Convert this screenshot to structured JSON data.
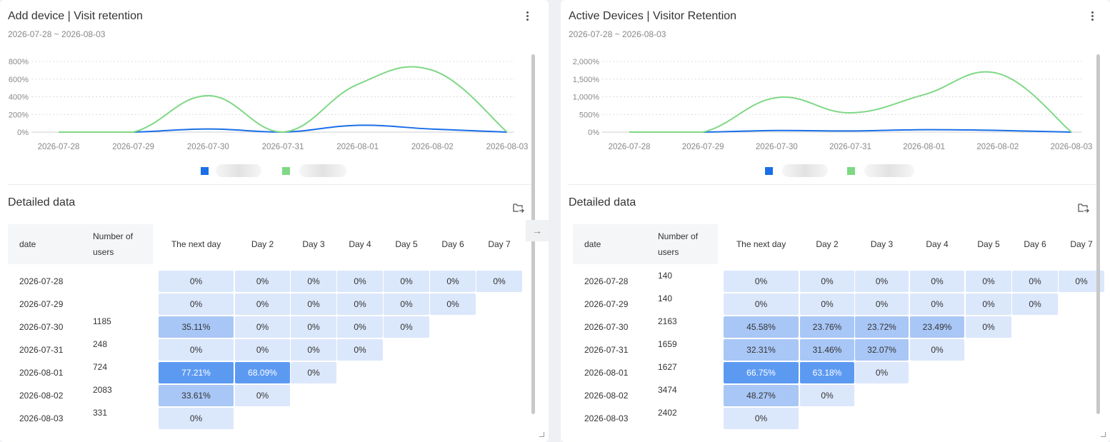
{
  "colors": {
    "blue_line": "#1a6fe8",
    "green_line": "#7fd885",
    "header_bg": "#f5f6f8",
    "cell_low": "#dbe7fb",
    "cell_mid": "#a9c7f6",
    "cell_high": "#5c9af2"
  },
  "panels": [
    {
      "title": "Add device | Visit retention",
      "date_range": "2026-07-28 ~ 2026-08-03",
      "detail_title": "Detailed data",
      "chart": {
        "y_ticks": [
          "800%",
          "600%",
          "400%",
          "200%",
          "0%"
        ],
        "y_max": 800,
        "x_labels": [
          "2026-07-28",
          "2026-07-29",
          "2026-07-30",
          "2026-07-31",
          "2026-08-01",
          "2026-08-02",
          "2026-08-03"
        ],
        "series": [
          {
            "color": "#1a6fe8",
            "values": [
              0,
              0,
              35,
              0,
              77,
              34,
              0
            ]
          },
          {
            "color": "#7fd885",
            "values": [
              0,
              0,
              412,
              0,
              540,
              700,
              0
            ]
          }
        ]
      },
      "columns": {
        "date": "date",
        "users": "Number of users",
        "days": [
          "The next day",
          "Day 2",
          "Day 3",
          "Day 4",
          "Day 5",
          "Day 6",
          "Day 7"
        ]
      },
      "rows": [
        {
          "date": "2026-07-28",
          "users": "",
          "cells": [
            "0%",
            "0%",
            "0%",
            "0%",
            "0%",
            "0%",
            "0%"
          ]
        },
        {
          "date": "2026-07-29",
          "users": "",
          "cells": [
            "0%",
            "0%",
            "0%",
            "0%",
            "0%",
            "0%"
          ]
        },
        {
          "date": "2026-07-30",
          "users": "1185",
          "cells": [
            "35.11%",
            "0%",
            "0%",
            "0%",
            "0%"
          ]
        },
        {
          "date": "2026-07-31",
          "users": "248",
          "cells": [
            "0%",
            "0%",
            "0%",
            "0%"
          ]
        },
        {
          "date": "2026-08-01",
          "users": "724",
          "cells": [
            "77.21%",
            "68.09%",
            "0%"
          ]
        },
        {
          "date": "2026-08-02",
          "users": "2083",
          "cells": [
            "33.61%",
            "0%"
          ]
        },
        {
          "date": "2026-08-03",
          "users": "331",
          "cells": [
            "0%"
          ]
        }
      ]
    },
    {
      "title": "Active Devices | Visitor Retention",
      "date_range": "2026-07-28 ~ 2026-08-03",
      "detail_title": "Detailed data",
      "chart": {
        "y_ticks": [
          "2,000%",
          "1,500%",
          "1,000%",
          "500%",
          "0%"
        ],
        "y_max": 2000,
        "x_labels": [
          "2026-07-28",
          "2026-07-29",
          "2026-07-30",
          "2026-07-31",
          "2026-08-01",
          "2026-08-02",
          "2026-08-03"
        ],
        "series": [
          {
            "color": "#1a6fe8",
            "values": [
              0,
              0,
              45,
              32,
              67,
              48,
              0
            ]
          },
          {
            "color": "#7fd885",
            "values": [
              0,
              0,
              975,
              545,
              1060,
              1660,
              0
            ]
          }
        ]
      },
      "columns": {
        "date": "date",
        "users": "Number of users",
        "days": [
          "The next day",
          "Day 2",
          "Day 3",
          "Day 4",
          "Day 5",
          "Day 6",
          "Day 7"
        ]
      },
      "rows": [
        {
          "date": "2026-07-28",
          "users": "140",
          "cells": [
            "0%",
            "0%",
            "0%",
            "0%",
            "0%",
            "0%",
            "0%"
          ]
        },
        {
          "date": "2026-07-29",
          "users": "140",
          "cells": [
            "0%",
            "0%",
            "0%",
            "0%",
            "0%",
            "0%"
          ]
        },
        {
          "date": "2026-07-30",
          "users": "2163",
          "cells": [
            "45.58%",
            "23.76%",
            "23.72%",
            "23.49%",
            "0%"
          ]
        },
        {
          "date": "2026-07-31",
          "users": "1659",
          "cells": [
            "32.31%",
            "31.46%",
            "32.07%",
            "0%"
          ]
        },
        {
          "date": "2026-08-01",
          "users": "1627",
          "cells": [
            "66.75%",
            "63.18%",
            "0%"
          ]
        },
        {
          "date": "2026-08-02",
          "users": "3474",
          "cells": [
            "48.27%",
            "0%"
          ]
        },
        {
          "date": "2026-08-03",
          "users": "2402",
          "cells": [
            "0%"
          ]
        }
      ]
    }
  ]
}
